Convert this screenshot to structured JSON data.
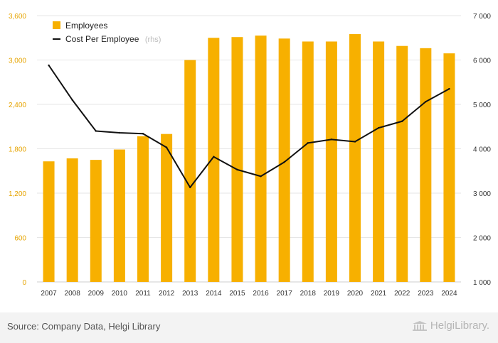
{
  "chart_data": {
    "type": "bar+line",
    "categories": [
      "2007",
      "2008",
      "2009",
      "2010",
      "2011",
      "2012",
      "2013",
      "2014",
      "2015",
      "2016",
      "2017",
      "2018",
      "2019",
      "2020",
      "2021",
      "2022",
      "2023",
      "2024"
    ],
    "series": [
      {
        "name": "Employees",
        "type": "bar",
        "axis": "left",
        "color": "#f7b000",
        "values": [
          1630,
          1670,
          1650,
          1790,
          1970,
          2000,
          3000,
          3300,
          3310,
          3330,
          3290,
          3250,
          3250,
          3350,
          3250,
          3190,
          3160,
          3090
        ]
      },
      {
        "name": "Cost Per Employee",
        "type": "line",
        "axis": "right",
        "color": "#111111",
        "values": [
          5880,
          5100,
          4400,
          4360,
          4340,
          4030,
          3130,
          3820,
          3530,
          3380,
          3700,
          4130,
          4210,
          4160,
          4470,
          4620,
          5060,
          5350
        ]
      }
    ],
    "legend": {
      "employees": "Employees",
      "cost": "Cost Per Employee",
      "cost_note": "(rhs)",
      "placement": "top-left"
    },
    "y_left": {
      "min": 0,
      "max": 3600,
      "ticks": [
        "0",
        "600",
        "1,200",
        "1,800",
        "2,400",
        "3,000",
        "3,600"
      ]
    },
    "y_right": {
      "min": 1000,
      "max": 7000,
      "ticks": [
        "1 000",
        "2 000",
        "3 000",
        "4 000",
        "5 000",
        "6 000",
        "7 000"
      ]
    },
    "grid": true
  },
  "footer": {
    "source": "Source: Company Data, Helgi Library",
    "brand": "HelgiLibrary."
  }
}
